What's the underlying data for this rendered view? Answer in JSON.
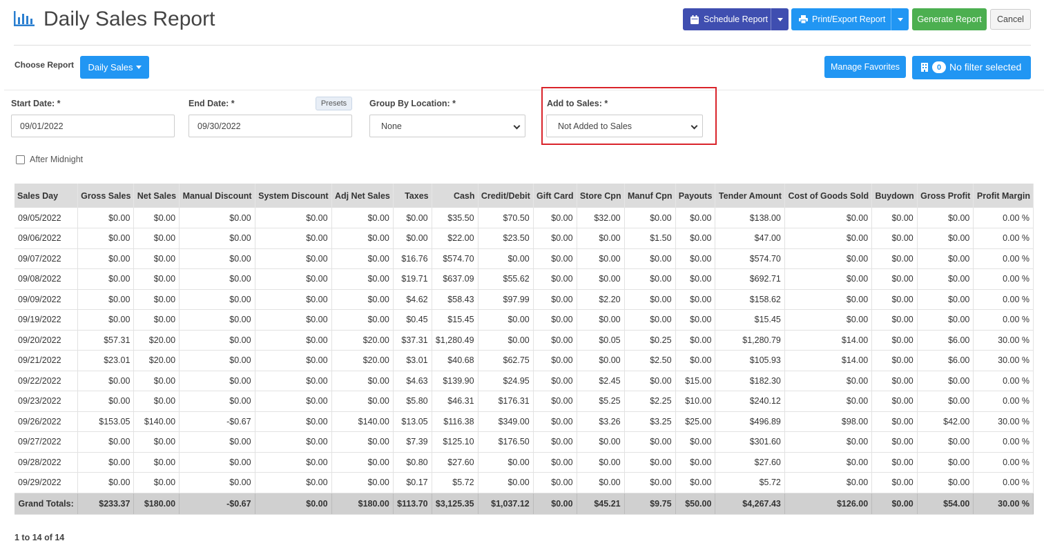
{
  "header": {
    "title": "Daily Sales Report",
    "schedule_label": "Schedule Report",
    "print_label": "Print/Export Report",
    "generate_label": "Generate Report",
    "cancel_label": "Cancel"
  },
  "toolbar": {
    "choose_label": "Choose Report",
    "report_select": "Daily Sales",
    "favorites_label": "Manage Favorites",
    "filter_count": "0",
    "filter_label": "No filter selected"
  },
  "filters": {
    "start_label": "Start Date: *",
    "start_value": "09/01/2022",
    "end_label": "End Date: *",
    "end_value": "09/30/2022",
    "presets_label": "Presets",
    "group_label": "Group By Location: *",
    "group_value": "None",
    "add_label": "Add to Sales: *",
    "add_value": "Not Added to Sales",
    "midnight_label": "After Midnight"
  },
  "table": {
    "columns": [
      "Sales Day",
      "Gross Sales",
      "Net Sales",
      "Manual Discount",
      "System Discount",
      "Adj Net Sales",
      "Taxes",
      "Cash",
      "Credit/Debit",
      "Gift Card",
      "Store Cpn",
      "Manuf Cpn",
      "Payouts",
      "Tender Amount",
      "Cost of Goods Sold",
      "Buydown",
      "Gross Profit",
      "Profit Margin"
    ],
    "rows": [
      [
        "09/05/2022",
        "$0.00",
        "$0.00",
        "$0.00",
        "$0.00",
        "$0.00",
        "$0.00",
        "$35.50",
        "$70.50",
        "$0.00",
        "$32.00",
        "$0.00",
        "$0.00",
        "$138.00",
        "$0.00",
        "$0.00",
        "$0.00",
        "0.00 %"
      ],
      [
        "09/06/2022",
        "$0.00",
        "$0.00",
        "$0.00",
        "$0.00",
        "$0.00",
        "$0.00",
        "$22.00",
        "$23.50",
        "$0.00",
        "$0.00",
        "$1.50",
        "$0.00",
        "$47.00",
        "$0.00",
        "$0.00",
        "$0.00",
        "0.00 %"
      ],
      [
        "09/07/2022",
        "$0.00",
        "$0.00",
        "$0.00",
        "$0.00",
        "$0.00",
        "$16.76",
        "$574.70",
        "$0.00",
        "$0.00",
        "$0.00",
        "$0.00",
        "$0.00",
        "$574.70",
        "$0.00",
        "$0.00",
        "$0.00",
        "0.00 %"
      ],
      [
        "09/08/2022",
        "$0.00",
        "$0.00",
        "$0.00",
        "$0.00",
        "$0.00",
        "$19.71",
        "$637.09",
        "$55.62",
        "$0.00",
        "$0.00",
        "$0.00",
        "$0.00",
        "$692.71",
        "$0.00",
        "$0.00",
        "$0.00",
        "0.00 %"
      ],
      [
        "09/09/2022",
        "$0.00",
        "$0.00",
        "$0.00",
        "$0.00",
        "$0.00",
        "$4.62",
        "$58.43",
        "$97.99",
        "$0.00",
        "$2.20",
        "$0.00",
        "$0.00",
        "$158.62",
        "$0.00",
        "$0.00",
        "$0.00",
        "0.00 %"
      ],
      [
        "09/19/2022",
        "$0.00",
        "$0.00",
        "$0.00",
        "$0.00",
        "$0.00",
        "$0.45",
        "$15.45",
        "$0.00",
        "$0.00",
        "$0.00",
        "$0.00",
        "$0.00",
        "$15.45",
        "$0.00",
        "$0.00",
        "$0.00",
        "0.00 %"
      ],
      [
        "09/20/2022",
        "$57.31",
        "$20.00",
        "$0.00",
        "$0.00",
        "$20.00",
        "$37.31",
        "$1,280.49",
        "$0.00",
        "$0.00",
        "$0.05",
        "$0.25",
        "$0.00",
        "$1,280.79",
        "$14.00",
        "$0.00",
        "$6.00",
        "30.00 %"
      ],
      [
        "09/21/2022",
        "$23.01",
        "$20.00",
        "$0.00",
        "$0.00",
        "$20.00",
        "$3.01",
        "$40.68",
        "$62.75",
        "$0.00",
        "$0.00",
        "$2.50",
        "$0.00",
        "$105.93",
        "$14.00",
        "$0.00",
        "$6.00",
        "30.00 %"
      ],
      [
        "09/22/2022",
        "$0.00",
        "$0.00",
        "$0.00",
        "$0.00",
        "$0.00",
        "$4.63",
        "$139.90",
        "$24.95",
        "$0.00",
        "$2.45",
        "$0.00",
        "$15.00",
        "$182.30",
        "$0.00",
        "$0.00",
        "$0.00",
        "0.00 %"
      ],
      [
        "09/23/2022",
        "$0.00",
        "$0.00",
        "$0.00",
        "$0.00",
        "$0.00",
        "$5.80",
        "$46.31",
        "$176.31",
        "$0.00",
        "$5.25",
        "$2.25",
        "$10.00",
        "$240.12",
        "$0.00",
        "$0.00",
        "$0.00",
        "0.00 %"
      ],
      [
        "09/26/2022",
        "$153.05",
        "$140.00",
        "-$0.67",
        "$0.00",
        "$140.00",
        "$13.05",
        "$116.38",
        "$349.00",
        "$0.00",
        "$3.26",
        "$3.25",
        "$25.00",
        "$496.89",
        "$98.00",
        "$0.00",
        "$42.00",
        "30.00 %"
      ],
      [
        "09/27/2022",
        "$0.00",
        "$0.00",
        "$0.00",
        "$0.00",
        "$0.00",
        "$7.39",
        "$125.10",
        "$176.50",
        "$0.00",
        "$0.00",
        "$0.00",
        "$0.00",
        "$301.60",
        "$0.00",
        "$0.00",
        "$0.00",
        "0.00 %"
      ],
      [
        "09/28/2022",
        "$0.00",
        "$0.00",
        "$0.00",
        "$0.00",
        "$0.00",
        "$0.80",
        "$27.60",
        "$0.00",
        "$0.00",
        "$0.00",
        "$0.00",
        "$0.00",
        "$27.60",
        "$0.00",
        "$0.00",
        "$0.00",
        "0.00 %"
      ],
      [
        "09/29/2022",
        "$0.00",
        "$0.00",
        "$0.00",
        "$0.00",
        "$0.00",
        "$0.17",
        "$5.72",
        "$0.00",
        "$0.00",
        "$0.00",
        "$0.00",
        "$0.00",
        "$5.72",
        "$0.00",
        "$0.00",
        "$0.00",
        "0.00 %"
      ]
    ],
    "totals": [
      "Grand Totals:",
      "$233.37",
      "$180.00",
      "-$0.67",
      "$0.00",
      "$180.00",
      "$113.70",
      "$3,125.35",
      "$1,037.12",
      "$0.00",
      "$45.21",
      "$9.75",
      "$50.00",
      "$4,267.43",
      "$126.00",
      "$0.00",
      "$54.00",
      "30.00 %"
    ]
  },
  "pager": {
    "text": "1 to 14 of 14"
  },
  "colors": {
    "schedule": "#3f4eb0",
    "primary": "#2196f3",
    "generate": "#4caf50",
    "highlight": "#d9232a"
  }
}
